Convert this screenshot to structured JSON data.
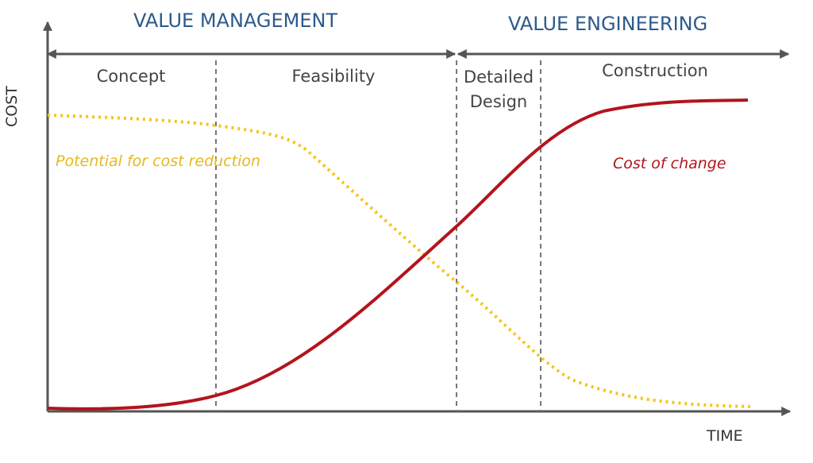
{
  "header": {
    "left": "VALUE MANAGEMENT",
    "right": "VALUE ENGINEERING"
  },
  "phases": [
    "Concept",
    "Feasibility",
    "Detailed Design",
    "Construction"
  ],
  "axes": {
    "y": "COST",
    "x": "TIME"
  },
  "curves": {
    "reduction": "Potential for cost reduction",
    "change": "Cost of change"
  }
}
